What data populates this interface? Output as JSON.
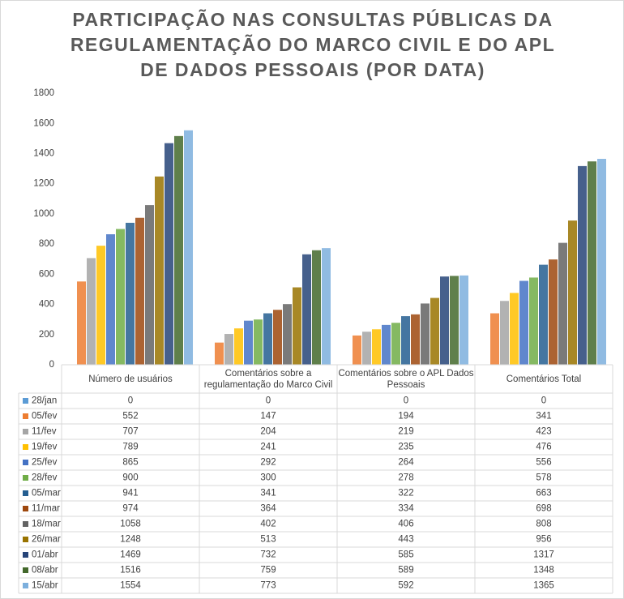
{
  "chart_data": {
    "type": "bar",
    "title": "PARTICIPAÇÃO NAS CONSULTAS PÚBLICAS DA REGULAMENTAÇÃO DO MARCO CIVIL E DO APL DE DADOS PESSOAIS (POR DATA)",
    "categories": [
      "Número de usuários",
      "Comentários sobre a regulamentação do Marco Civil",
      "Comentários sobre o APL Dados Pessoais",
      "Comentários Total"
    ],
    "ylim": [
      0,
      1800
    ],
    "yticks": [
      0,
      200,
      400,
      600,
      800,
      1000,
      1200,
      1400,
      1600,
      1800
    ],
    "grid": false,
    "series": [
      {
        "name": "28/jan",
        "color": "#5b9bd5",
        "values": [
          0,
          0,
          0,
          0
        ]
      },
      {
        "name": "05/fev",
        "color": "#ed7d31",
        "values": [
          552,
          147,
          194,
          341
        ]
      },
      {
        "name": "11/fev",
        "color": "#a5a5a5",
        "values": [
          707,
          204,
          219,
          423
        ]
      },
      {
        "name": "19/fev",
        "color": "#ffc000",
        "values": [
          789,
          241,
          235,
          476
        ]
      },
      {
        "name": "25/fev",
        "color": "#4472c4",
        "values": [
          865,
          292,
          264,
          556
        ]
      },
      {
        "name": "28/fev",
        "color": "#70ad47",
        "values": [
          900,
          300,
          278,
          578
        ]
      },
      {
        "name": "05/mar",
        "color": "#255e91",
        "values": [
          941,
          341,
          322,
          663
        ]
      },
      {
        "name": "11/mar",
        "color": "#9e480e",
        "values": [
          974,
          364,
          334,
          698
        ]
      },
      {
        "name": "18/mar",
        "color": "#636363",
        "values": [
          1058,
          402,
          406,
          808
        ]
      },
      {
        "name": "26/mar",
        "color": "#997300",
        "values": [
          1248,
          513,
          443,
          956
        ]
      },
      {
        "name": "01/abr",
        "color": "#264478",
        "values": [
          1469,
          732,
          585,
          1317
        ]
      },
      {
        "name": "08/abr",
        "color": "#43682b",
        "values": [
          1516,
          759,
          589,
          1348
        ]
      },
      {
        "name": "15/abr",
        "color": "#7cafdd",
        "values": [
          1554,
          773,
          592,
          1365
        ]
      }
    ]
  }
}
